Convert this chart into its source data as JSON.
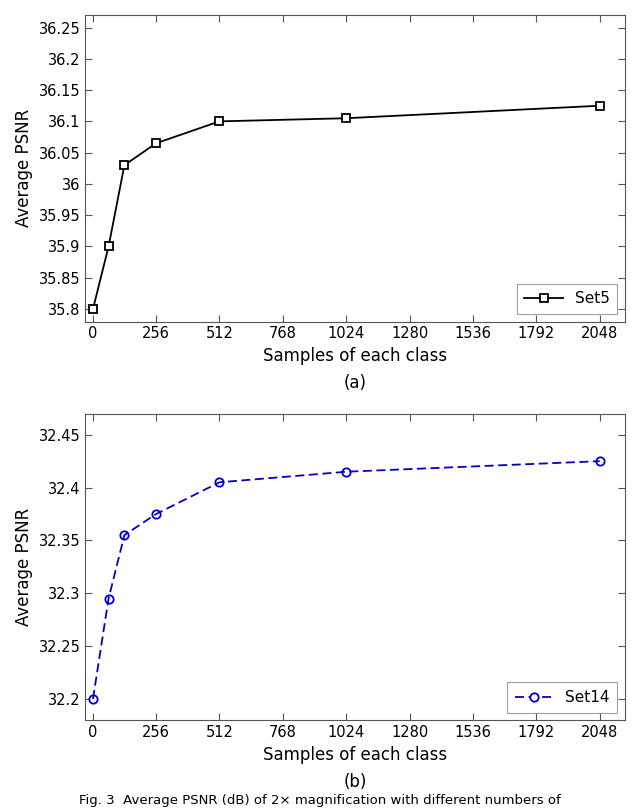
{
  "plot_a": {
    "x": [
      1,
      64,
      128,
      256,
      512,
      1024,
      2048
    ],
    "y": [
      35.8,
      35.9,
      36.03,
      36.065,
      36.1,
      36.105,
      36.125
    ],
    "color": "#000000",
    "linestyle": "-",
    "marker": "s",
    "markersize": 6,
    "label": "Set5",
    "ylabel": "Average PSNR",
    "xlabel": "Samples of each class",
    "ylim": [
      35.78,
      36.27
    ],
    "ytick_vals": [
      35.8,
      35.85,
      35.9,
      35.95,
      36.0,
      36.05,
      36.1,
      36.15,
      36.2,
      36.25
    ],
    "ytick_labels": [
      "35.8",
      "35.85",
      "35.9",
      "35.95",
      "36",
      "36.05",
      "36.1",
      "36.15",
      "36.2",
      "36.25"
    ],
    "xticks": [
      0,
      256,
      512,
      768,
      1024,
      1280,
      1536,
      1792,
      2048
    ],
    "xlim": [
      -30,
      2150
    ],
    "caption": "(a)"
  },
  "plot_b": {
    "x": [
      1,
      64,
      128,
      256,
      512,
      1024,
      2048
    ],
    "y": [
      32.2,
      32.295,
      32.355,
      32.375,
      32.405,
      32.415,
      32.425
    ],
    "color": "#0000cc",
    "linestyle": "--",
    "marker": "o",
    "markersize": 6,
    "label": "Set14",
    "ylabel": "Average PSNR",
    "xlabel": "Samples of each class",
    "ylim": [
      32.18,
      32.47
    ],
    "ytick_vals": [
      32.2,
      32.25,
      32.3,
      32.35,
      32.4,
      32.45
    ],
    "ytick_labels": [
      "32.2",
      "32.25",
      "32.3",
      "32.35",
      "32.4",
      "32.45"
    ],
    "xticks": [
      0,
      256,
      512,
      768,
      1024,
      1280,
      1536,
      1792,
      2048
    ],
    "xlim": [
      -30,
      2150
    ],
    "caption": "(b)"
  },
  "background_color": "#ffffff",
  "fig_caption": "Fig. 3  Average PSNR (dB) of 2× magnification with different numbers of"
}
